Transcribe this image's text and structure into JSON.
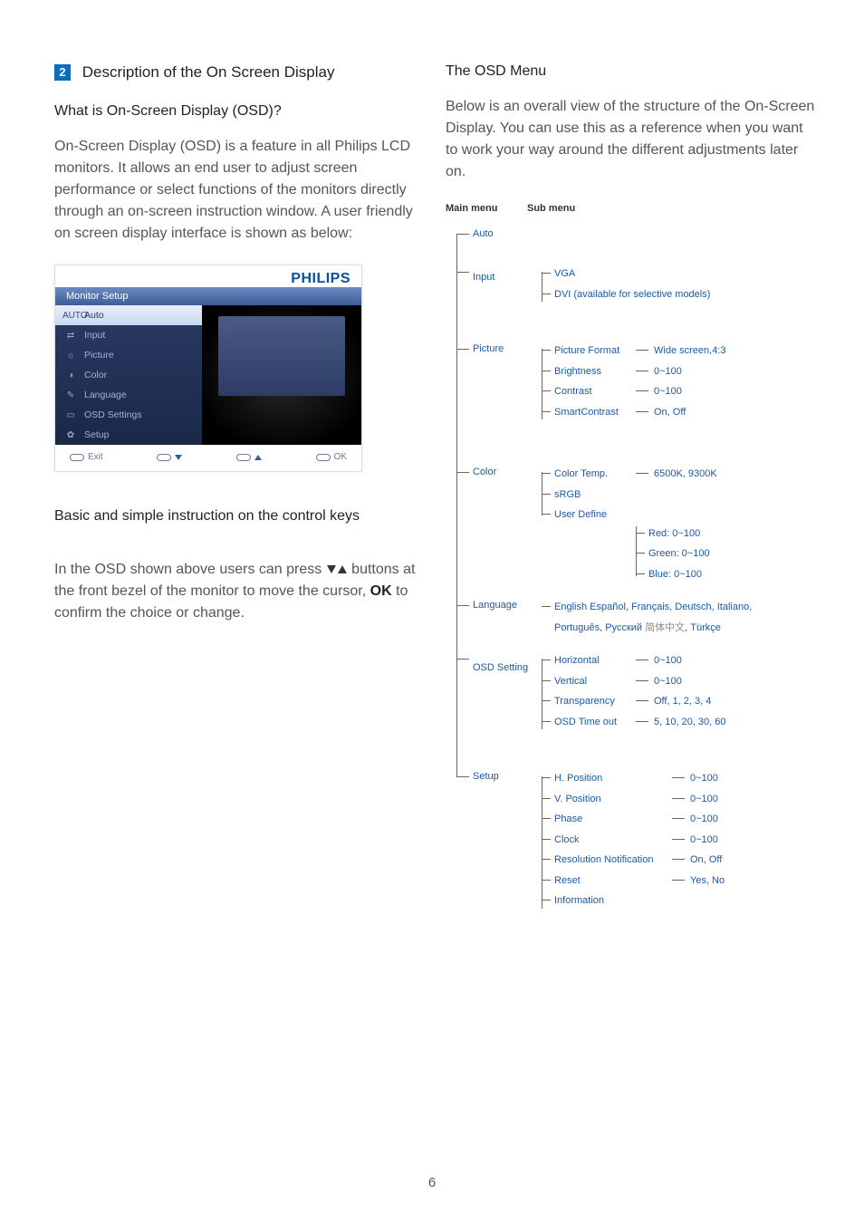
{
  "page_number": "6",
  "colors": {
    "brand_blue": "#0b4fa0",
    "section_blue": "#0a6dbf",
    "tree_blue": "#1a5aa8",
    "text_body": "#555555",
    "text_heading": "#222222",
    "muted_grey": "#888888",
    "line": "#666666"
  },
  "left": {
    "section_number": "2",
    "section_title": "Description of the On Screen Display",
    "q1_heading": "What is On-Screen Display (OSD)?",
    "q1_body": "On-Screen Display (OSD) is a feature in all Philips LCD monitors. It allows an end user to adjust screen performance or select functions of the monitors directly through an on-screen instruction window. A user friendly on screen display interface is shown as below:",
    "osd": {
      "logo": "PHILIPS",
      "title": "Monitor Setup",
      "menu": [
        {
          "icon": "AUTO",
          "label": "Auto",
          "active": true
        },
        {
          "icon": "⇄",
          "label": "Input",
          "active": false
        },
        {
          "icon": "☼",
          "label": "Picture",
          "active": false
        },
        {
          "icon": "◑",
          "label": "Color",
          "active": false
        },
        {
          "icon": "✎",
          "label": "Language",
          "active": false
        },
        {
          "icon": "▭",
          "label": "OSD Settings",
          "active": false
        },
        {
          "icon": "✿",
          "label": "Setup",
          "active": false
        }
      ],
      "btn_exit": "Exit",
      "btn_ok": "OK"
    },
    "keys_heading": "Basic and simple instruction on the control keys",
    "keys_body_1": "In the OSD shown above users can press ",
    "keys_body_2": " buttons at the front bezel of the monitor to move the cursor, ",
    "keys_ok": "OK",
    "keys_body_3": " to confirm the choice or change."
  },
  "right": {
    "heading": "The OSD Menu",
    "intro": "Below is an overall view of the structure of the On-Screen Display. You can use this as a reference when you want to work your way around the different adjustments later on.",
    "header_main": "Main menu",
    "header_sub": "Sub menu",
    "tree": {
      "auto": "Auto",
      "input": {
        "label": "Input",
        "items": [
          {
            "label": "VGA"
          },
          {
            "label": "DVI (available for selective models)"
          }
        ]
      },
      "picture": {
        "label": "Picture",
        "items": [
          {
            "label": "Picture Format",
            "val": "Wide screen,4:3"
          },
          {
            "label": "Brightness",
            "val": "0~100"
          },
          {
            "label": "Contrast",
            "val": "0~100"
          },
          {
            "label": "SmartContrast",
            "val": "On, Off"
          }
        ]
      },
      "color": {
        "label": "Color",
        "items": [
          {
            "label": "Color Temp.",
            "val": "6500K, 9300K"
          },
          {
            "label": "sRGB"
          },
          {
            "label": "User Define",
            "nested": [
              "Red: 0~100",
              "Green: 0~100",
              "Blue: 0~100"
            ]
          }
        ]
      },
      "language": {
        "label": "Language",
        "line1a": "English  Español, Français, Deutsch, Italiano,",
        "line2a": "Português, Русский  ",
        "line2b_zh": "简体中文",
        "line2c": ", Türkçe"
      },
      "osd_setting": {
        "label": "OSD Setting",
        "items": [
          {
            "label": "Horizontal",
            "val": "0~100"
          },
          {
            "label": "Vertical",
            "val": "0~100"
          },
          {
            "label": "Transparency",
            "val": "Off, 1, 2, 3, 4"
          },
          {
            "label": "OSD Time out",
            "val": "5, 10, 20, 30, 60"
          }
        ]
      },
      "setup": {
        "label": "Setup",
        "items": [
          {
            "label": "H. Position",
            "val": "0~100"
          },
          {
            "label": "V. Position",
            "val": "0~100"
          },
          {
            "label": "Phase",
            "val": "0~100"
          },
          {
            "label": "Clock",
            "val": "0~100"
          },
          {
            "label": "Resolution Notification",
            "val": "On, Off",
            "wide": true
          },
          {
            "label": "Reset",
            "val": "Yes, No"
          },
          {
            "label": "Information"
          }
        ]
      }
    }
  }
}
